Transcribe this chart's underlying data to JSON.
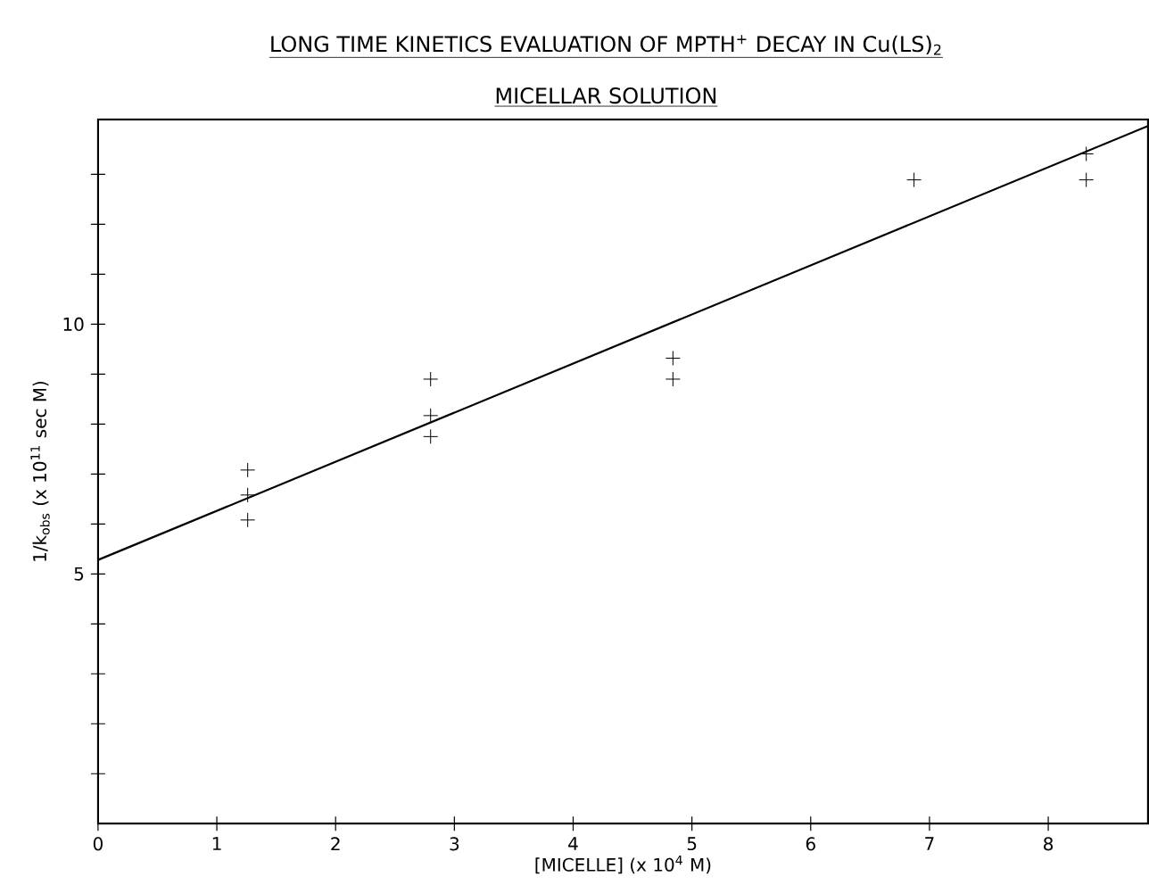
{
  "chart_data": {
    "type": "scatter",
    "title": "LONG TIME KINETICS EVALUATION OF MPTH$^{+}$ DECAY IN Cu(LS)$_{2}$",
    "subtitle": "MICELLAR SOLUTION",
    "xlabel": "[MICELLE] (x 10$^{4}$ M)",
    "ylabel": "1/k$_{obs}$ (x 10$^{11}$ sec M)",
    "xlim": [
      0,
      8.84
    ],
    "xticks": [
      0,
      1,
      2,
      3,
      4,
      5,
      6,
      7,
      8
    ],
    "ylim": [
      0,
      14.1
    ],
    "yticks": [
      {
        "value": 1,
        "label": null
      },
      {
        "value": 2,
        "label": null
      },
      {
        "value": 3,
        "label": null
      },
      {
        "value": 4,
        "label": null
      },
      5,
      {
        "value": 6,
        "label": null
      },
      {
        "value": 7,
        "label": null
      },
      {
        "value": 8,
        "label": null
      },
      {
        "value": 9,
        "label": null
      },
      10,
      {
        "value": 11,
        "label": null
      },
      {
        "value": 12,
        "label": null
      },
      {
        "value": 13,
        "label": null
      }
    ],
    "grid": false,
    "legend": false,
    "series": [
      {
        "type": "scatter",
        "color": "#000000",
        "marker": "cross",
        "x": [
          1.26,
          1.26,
          1.26,
          2.8,
          2.8,
          2.8,
          4.84,
          4.84,
          6.87,
          8.32,
          8.32
        ],
        "values": [
          7.08,
          6.58,
          6.08,
          8.9,
          8.17,
          7.75,
          9.32,
          8.9,
          12.89,
          13.41,
          12.89
        ]
      },
      {
        "type": "line",
        "color": "#000000",
        "marker": "none",
        "line_style": "solid",
        "x": [
          0,
          8.84
        ],
        "values": [
          5.28,
          13.97
        ]
      }
    ]
  }
}
